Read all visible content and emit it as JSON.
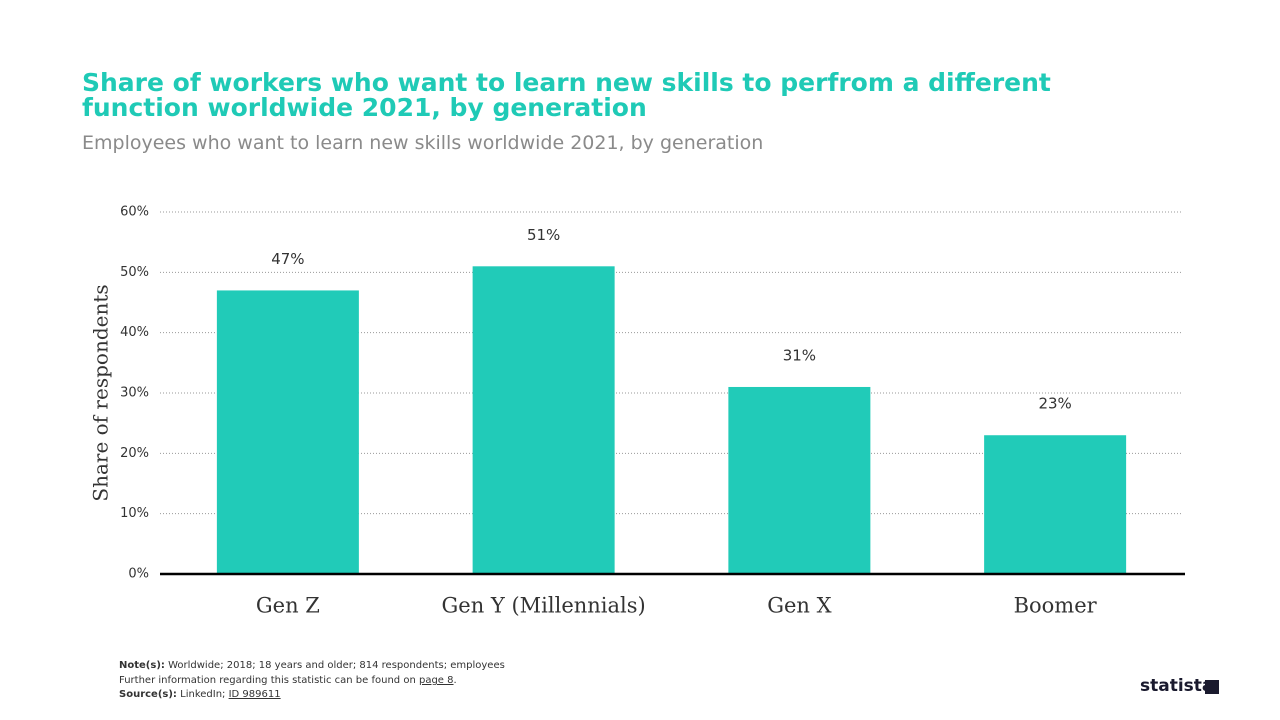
{
  "chart_data": {
    "type": "bar",
    "title": "Share of workers who want to learn new skills to perfrom a different function worldwide 2021, by generation",
    "subtitle": "Employees who want to learn new skills worldwide 2021, by generation",
    "y_label": "Share of respondents",
    "categories": [
      "Gen Z",
      "Gen Y (Millennials)",
      "Gen X",
      "Boomer"
    ],
    "values": [
      47,
      51,
      31,
      23
    ],
    "value_labels": [
      "47%",
      "51%",
      "31%",
      "23%"
    ],
    "color": "#21cbb8",
    "ylim": [
      0,
      60
    ],
    "yticks": [
      {
        "value": 0,
        "label": "0%"
      },
      {
        "value": 10,
        "label": "10%"
      },
      {
        "value": 20,
        "label": "20%"
      },
      {
        "value": 30,
        "label": "30%"
      },
      {
        "value": 40,
        "label": "40%"
      },
      {
        "value": 50,
        "label": "50%"
      },
      {
        "value": 60,
        "label": "60%"
      }
    ],
    "grid": true,
    "note_label": "Note(s):",
    "note": "Worldwide; 2018; 18 years and older; 814 respondents; employees",
    "info_text": "Further information regarding this statistic can be found on",
    "info_link": "page 8",
    "info_end": ".",
    "source_label": "Source(s):",
    "source": "LinkedIn;",
    "source_id": "ID 989611",
    "logo": "statista"
  }
}
